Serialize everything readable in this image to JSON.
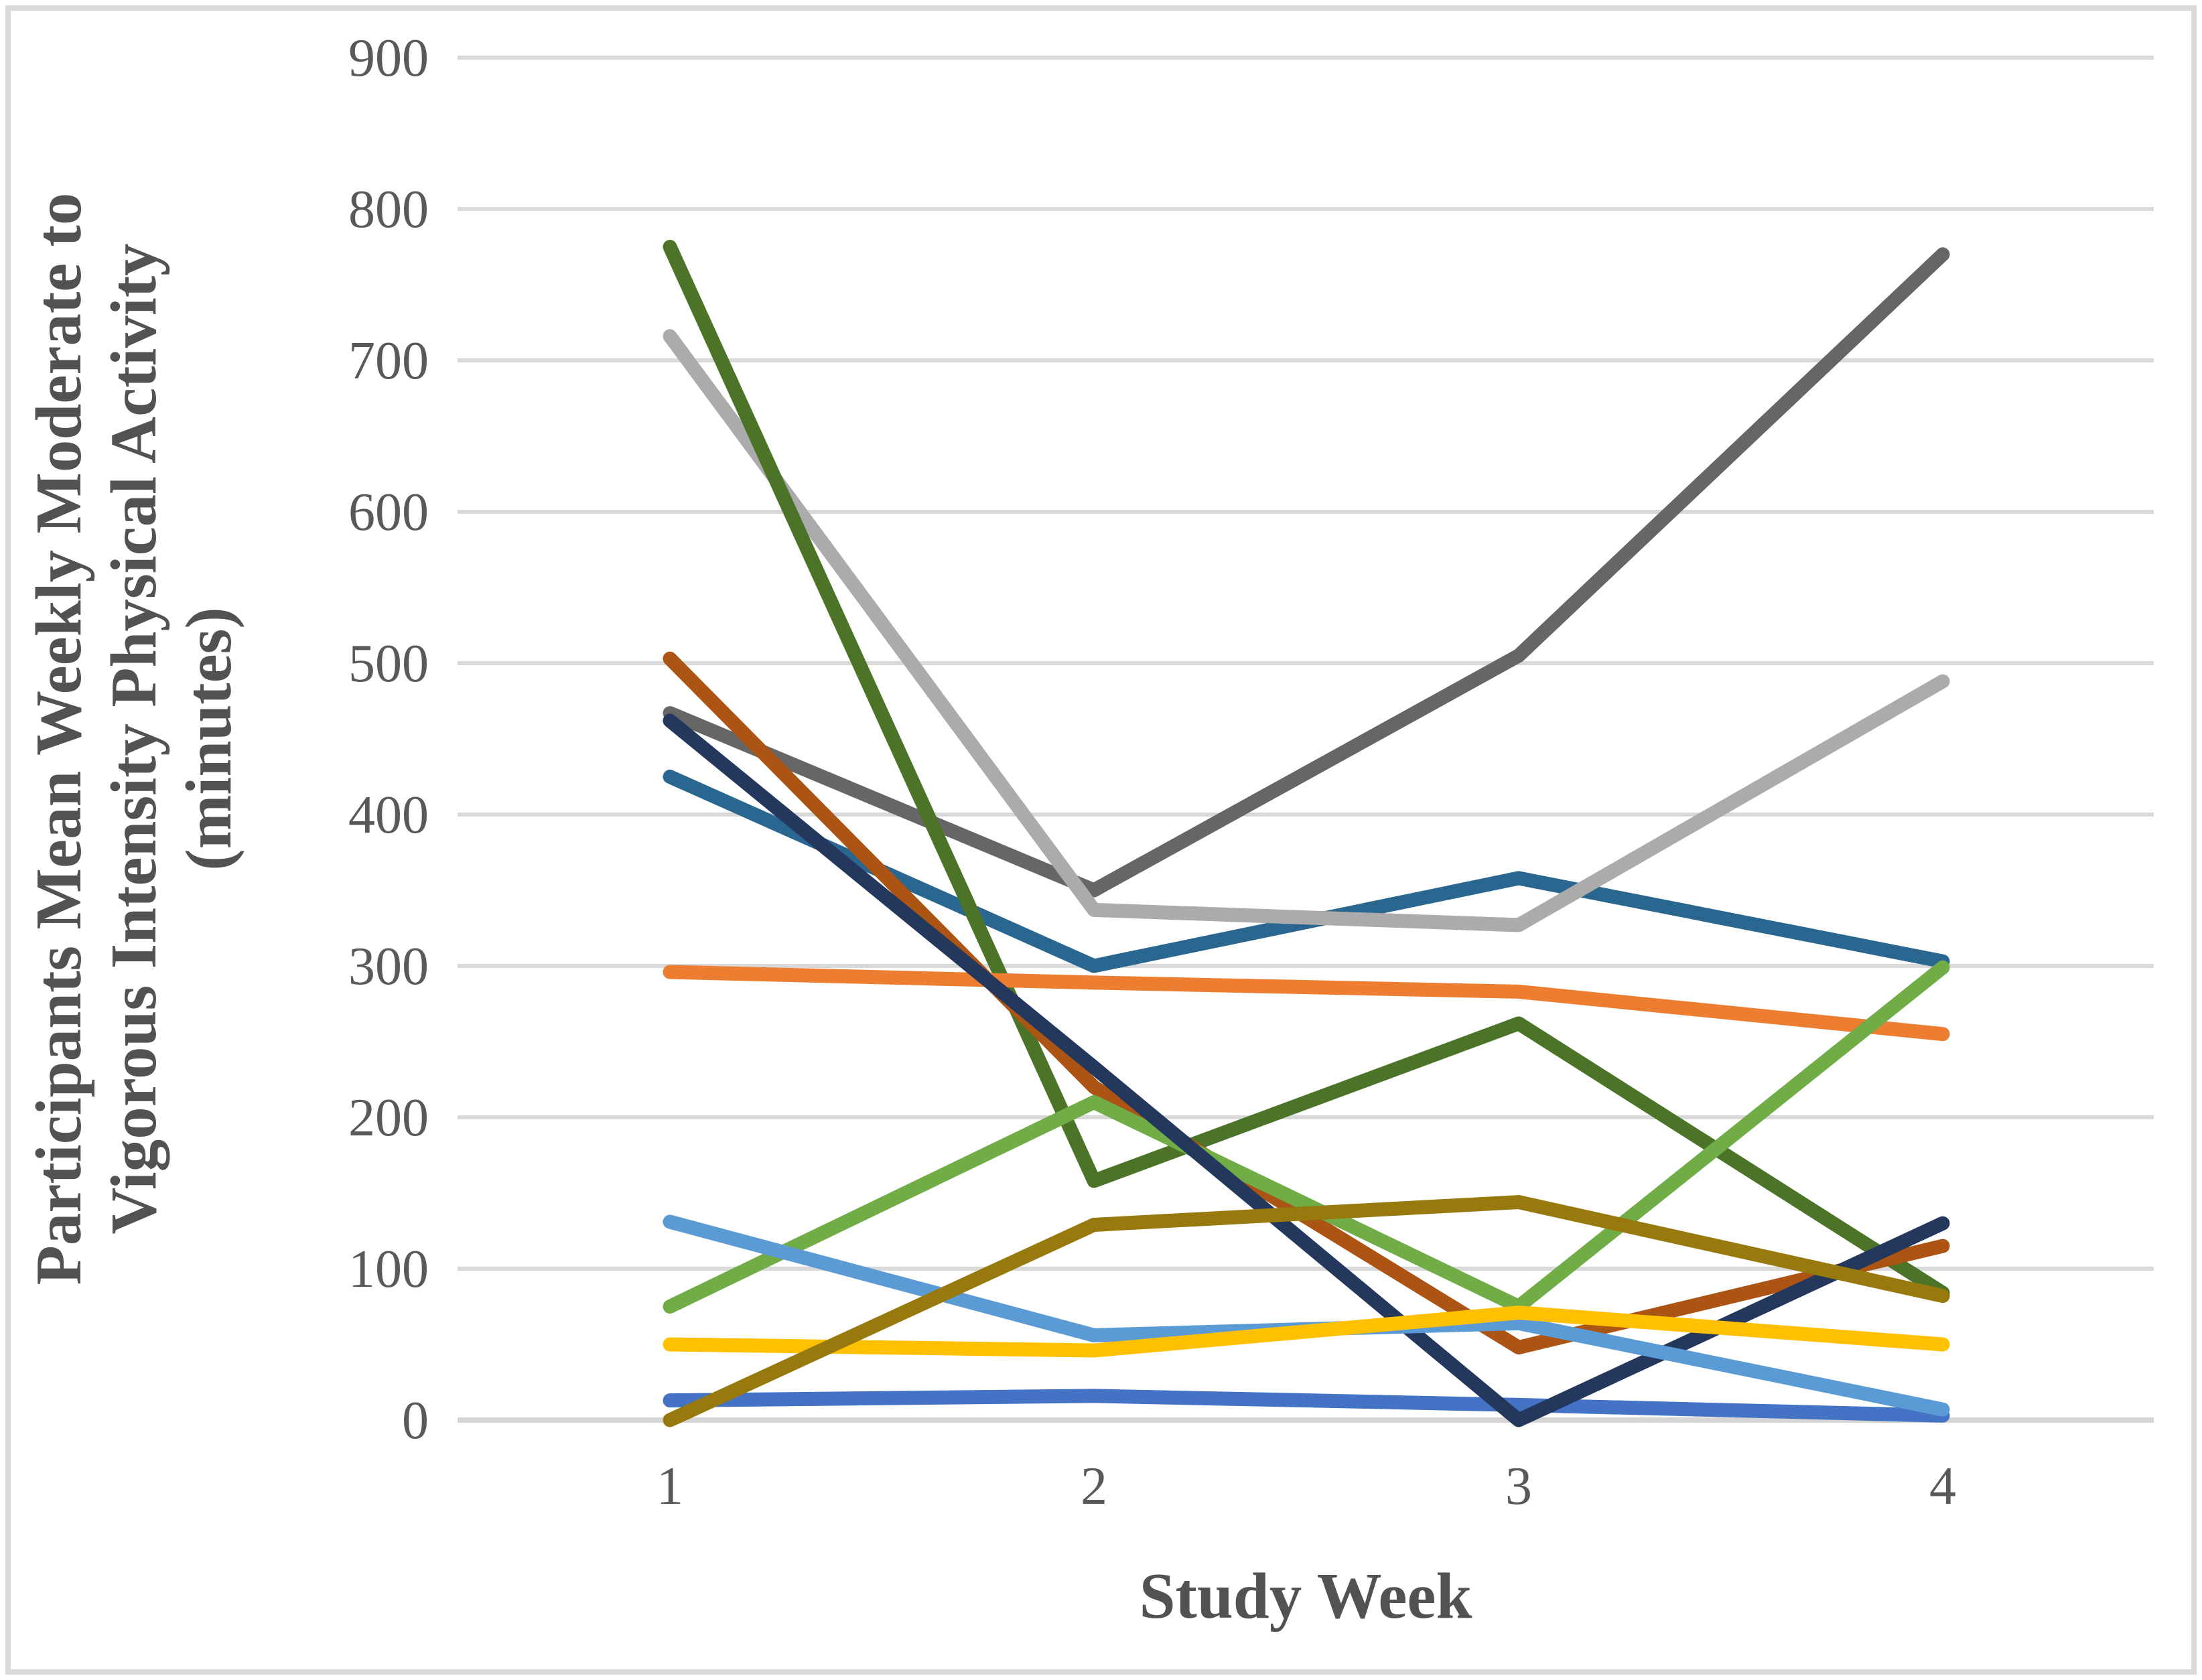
{
  "page": {
    "background_color": "#FFFFFF",
    "frame_border_color": "#D9D9D9"
  },
  "chart_data": {
    "type": "line",
    "title": "",
    "xlabel": "Study Week",
    "ylabel": "Participants Mean Weekly Moderate to Vigorous Intensity Physical Activity (minutes)",
    "ylabel_lines": [
      "Participants Mean Weekly Moderate to",
      "Vigorous Intensity Physical Activity",
      "(minutes)"
    ],
    "x": [
      1,
      2,
      3,
      4
    ],
    "x_tick_labels": [
      "1",
      "2",
      "3",
      "4"
    ],
    "y_ticks": [
      0,
      100,
      200,
      300,
      400,
      500,
      600,
      700,
      800,
      900
    ],
    "ylim": [
      0,
      900
    ],
    "grid": true,
    "legend": "none",
    "axis_tick_color": "#595959",
    "axis_title_color": "#525252",
    "gridline_color": "#D9D9D9",
    "zero_line_color": "#D5D5D5",
    "series": [
      {
        "color_name": "steel-blue",
        "color": "#2A6790",
        "values": [
          425,
          300,
          358,
          303
        ]
      },
      {
        "color_name": "dark-gray",
        "color": "#666666",
        "values": [
          467,
          350,
          505,
          770
        ]
      },
      {
        "color_name": "royal-blue",
        "color": "#4472C4",
        "values": [
          13,
          16,
          10,
          3
        ]
      },
      {
        "color_name": "light-gray",
        "color": "#ABABAB",
        "values": [
          716,
          337,
          327,
          488
        ]
      },
      {
        "color_name": "dark-green",
        "color": "#4B7428",
        "values": [
          775,
          158,
          262,
          84
        ]
      },
      {
        "color_name": "brown",
        "color": "#AC5414",
        "values": [
          503,
          220,
          48,
          115
        ]
      },
      {
        "color_name": "orange",
        "color": "#ED7D31",
        "values": [
          296,
          289,
          283,
          255
        ]
      },
      {
        "color_name": "light-green",
        "color": "#70AD47",
        "values": [
          75,
          210,
          75,
          299
        ]
      },
      {
        "color_name": "navy",
        "color": "#24385E",
        "values": [
          462,
          233,
          0,
          130
        ]
      },
      {
        "color_name": "light-blue",
        "color": "#5B9BD5",
        "values": [
          131,
          56,
          64,
          7
        ]
      },
      {
        "color_name": "yellow",
        "color": "#FFC000",
        "values": [
          50,
          46,
          71,
          50
        ]
      },
      {
        "color_name": "olive",
        "color": "#97790D",
        "values": [
          0,
          129,
          144,
          82
        ]
      }
    ]
  }
}
